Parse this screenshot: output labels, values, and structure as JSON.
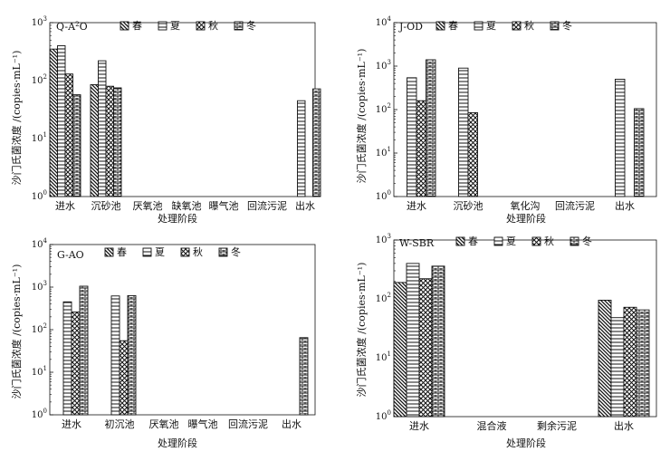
{
  "figure": {
    "legend_labels": [
      "春",
      "夏",
      "秋",
      "冬"
    ],
    "season_patterns": [
      "diagonal",
      "horizontal",
      "crosshatch",
      "brick"
    ],
    "colors": {
      "ink": "#111111",
      "fill": "#ffffff"
    }
  },
  "chart_data": [
    {
      "type": "bar",
      "scale": "log",
      "title": "Q-A2O",
      "title_base": "Q-A",
      "title_sup": "2",
      "title_tail": "O",
      "xlabel": "处理阶段",
      "ylabel": "沙门氏菌浓度 /(copies·mL⁻¹)",
      "ylim_exp": [
        0,
        3
      ],
      "tick_base": "10",
      "tick_exps": [
        "0",
        "1",
        "2",
        "3"
      ],
      "categories": [
        "进水",
        "沉砂池",
        "厌氧池",
        "缺氧池",
        "曝气池",
        "回流污泥",
        "出水"
      ],
      "series": [
        {
          "name": "春",
          "values": [
            350,
            85,
            null,
            null,
            null,
            null,
            null
          ]
        },
        {
          "name": "夏",
          "values": [
            400,
            220,
            null,
            null,
            null,
            null,
            45
          ]
        },
        {
          "name": "秋",
          "values": [
            130,
            80,
            null,
            null,
            null,
            null,
            null
          ]
        },
        {
          "name": "冬",
          "values": [
            57,
            75,
            null,
            null,
            null,
            null,
            72
          ]
        }
      ]
    },
    {
      "type": "bar",
      "scale": "log",
      "title": "J-OD",
      "title_base": "J-OD",
      "title_sup": "",
      "title_tail": "",
      "xlabel": "处理阶段",
      "ylabel": "沙门氏菌浓度 /(copies·mL⁻¹)",
      "ylim_exp": [
        0,
        4
      ],
      "tick_base": "10",
      "tick_exps": [
        "0",
        "1",
        "2",
        "3",
        "4"
      ],
      "categories": [
        "进水",
        "沉砂池",
        "氧化沟",
        "回流污泥",
        "出水"
      ],
      "series": [
        {
          "name": "春",
          "values": [
            null,
            null,
            null,
            null,
            null
          ]
        },
        {
          "name": "夏",
          "values": [
            540,
            900,
            null,
            null,
            500
          ]
        },
        {
          "name": "秋",
          "values": [
            160,
            85,
            null,
            null,
            null
          ]
        },
        {
          "name": "冬",
          "values": [
            1400,
            null,
            null,
            null,
            105
          ]
        }
      ]
    },
    {
      "type": "bar",
      "scale": "log",
      "title": "G-AO",
      "title_base": "G-AO",
      "title_sup": "",
      "title_tail": "",
      "xlabel": "处理阶段",
      "ylabel": "沙门氏菌浓度 /(copies·mL⁻¹)",
      "ylim_exp": [
        0,
        4
      ],
      "tick_base": "10",
      "tick_exps": [
        "0",
        "1",
        "2",
        "3",
        "4"
      ],
      "categories": [
        "进水",
        "初沉池",
        "厌氧池",
        "曝气池",
        "回流污泥",
        "出水"
      ],
      "series": [
        {
          "name": "春",
          "values": [
            null,
            null,
            null,
            null,
            null,
            null
          ]
        },
        {
          "name": "夏",
          "values": [
            450,
            620,
            null,
            null,
            null,
            null
          ]
        },
        {
          "name": "秋",
          "values": [
            260,
            55,
            null,
            null,
            null,
            null
          ]
        },
        {
          "name": "冬",
          "values": [
            1050,
            630,
            null,
            null,
            null,
            65
          ]
        }
      ]
    },
    {
      "type": "bar",
      "scale": "log",
      "title": "W-SBR",
      "title_base": "W-SBR",
      "title_sup": "",
      "title_tail": "",
      "xlabel": "处理阶段",
      "ylabel": "沙门氏菌浓度 /(copies·mL⁻¹)",
      "ylim_exp": [
        0,
        3
      ],
      "tick_base": "10",
      "tick_exps": [
        "0",
        "1",
        "2",
        "3"
      ],
      "categories": [
        "进水",
        "混合液",
        "剩余污泥",
        "出水"
      ],
      "series": [
        {
          "name": "春",
          "values": [
            190,
            null,
            null,
            95
          ]
        },
        {
          "name": "夏",
          "values": [
            400,
            null,
            null,
            48
          ]
        },
        {
          "name": "秋",
          "values": [
            220,
            null,
            null,
            72
          ]
        },
        {
          "name": "冬",
          "values": [
            360,
            null,
            null,
            65
          ]
        }
      ]
    }
  ]
}
